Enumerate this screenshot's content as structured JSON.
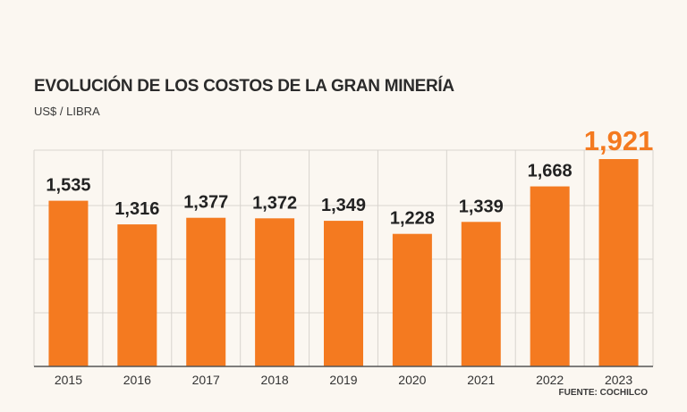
{
  "chart_data": {
    "type": "bar",
    "title": "EVOLUCIÓN DE LOS COSTOS DE LA GRAN MINERÍA",
    "ylabel": "US$ / LIBRA",
    "categories": [
      "2015",
      "2016",
      "2017",
      "2018",
      "2019",
      "2020",
      "2021",
      "2022",
      "2023"
    ],
    "values": [
      1.535,
      1.316,
      1.377,
      1.372,
      1.349,
      1.228,
      1.339,
      1.668,
      1.921
    ],
    "labels": [
      "1,535",
      "1,316",
      "1,377",
      "1,372",
      "1,349",
      "1,228",
      "1,339",
      "1,668",
      "1,921"
    ],
    "highlight_index": 8,
    "ylim": [
      0,
      1.921
    ],
    "source": "FUENTE: COCHILCO",
    "colors": {
      "bar": "#f47a20",
      "highlight_label": "#f47a20",
      "label": "#222222",
      "grid": "#d8d4ce",
      "axis": "#555555"
    }
  }
}
